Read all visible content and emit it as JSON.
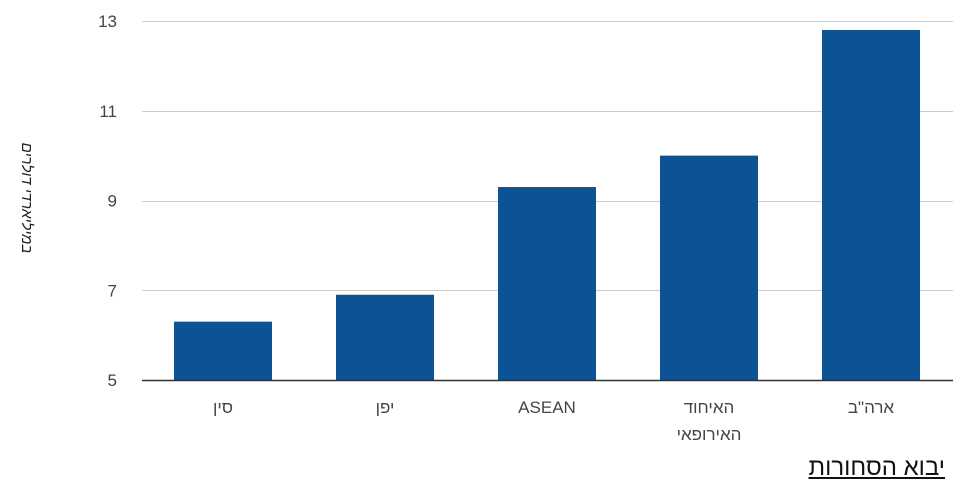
{
  "colors": {
    "bar": "#0b5394",
    "grid": "#cccccc",
    "axis": "#333333",
    "text": "#444444"
  },
  "footer": {
    "title": "יבוא הסחורות"
  },
  "chart_data": {
    "type": "bar",
    "categories": [
      "סין",
      "יפן",
      "ASEAN",
      "האיחוד האירופאי",
      "ארה\"ב"
    ],
    "category_lines": [
      [
        "סין"
      ],
      [
        "יפן"
      ],
      [
        "ASEAN"
      ],
      [
        "האיחוד",
        "האירופאי"
      ],
      [
        "ארה\"ב"
      ]
    ],
    "values": [
      6.3,
      6.9,
      9.3,
      10.0,
      12.8
    ],
    "ylabel": "במיליארדי דולרים",
    "xlabel": "",
    "ylim": [
      5,
      13
    ],
    "yticks": [
      5,
      7,
      9,
      11,
      13
    ],
    "grid": true,
    "legend": "none"
  }
}
